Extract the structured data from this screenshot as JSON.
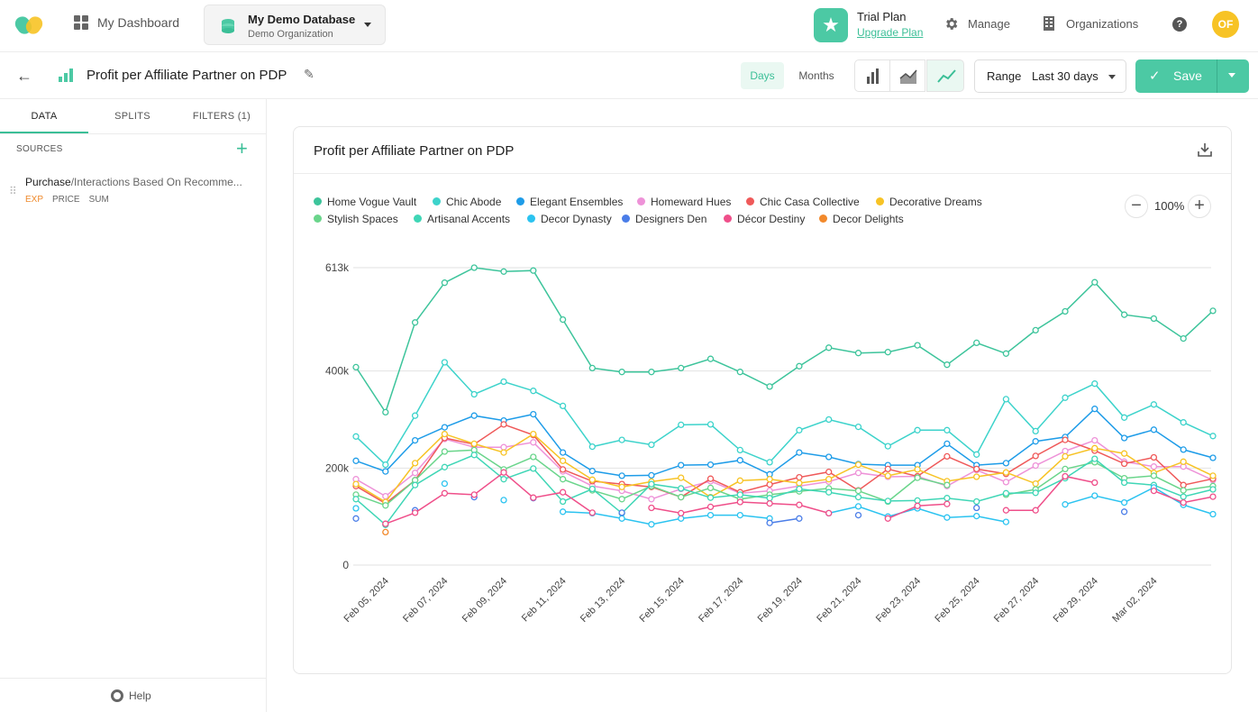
{
  "topbar": {
    "dashboard_label": "My Dashboard",
    "database_name": "My Demo Database",
    "organization_name": "Demo Organization",
    "trial_plan": "Trial Plan",
    "upgrade_link": "Upgrade Plan",
    "manage_label": "Manage",
    "organizations_label": "Organizations",
    "help_glyph": "?",
    "avatar_initials": "OF"
  },
  "subbar": {
    "title": "Profit per Affiliate Partner on PDP",
    "days": "Days",
    "months": "Months",
    "range_label": "Range",
    "range_value": "Last 30 days",
    "save_label": "Save"
  },
  "sidebar": {
    "tabs": [
      "DATA",
      "SPLITS",
      "FILTERS (1)"
    ],
    "sources_label": "SOURCES",
    "source_main": "Purchase",
    "source_sub": "/Interactions Based On Recomme...",
    "tags": [
      "EXP",
      "PRICE",
      "SUM"
    ],
    "help_label": "Help"
  },
  "card": {
    "title": "Profit per Affiliate Partner on PDP",
    "zoom": "100%"
  },
  "colors": {
    "accent": "#4cc9a4"
  },
  "chart_data": {
    "type": "line",
    "title": "Profit per Affiliate Partner on PDP",
    "xlabel": "",
    "ylabel": "",
    "ylim": [
      0,
      613000
    ],
    "y_ticks": [
      "613k",
      "400k",
      "200k",
      "0"
    ],
    "y_tick_values": [
      613000,
      400000,
      200000,
      0
    ],
    "x_tick_labels": [
      "Feb 05, 2024",
      "Feb 07, 2024",
      "Feb 09, 2024",
      "Feb 11, 2024",
      "Feb 13, 2024",
      "Feb 15, 2024",
      "Feb 17, 2024",
      "Feb 19, 2024",
      "Feb 21, 2024",
      "Feb 23, 2024",
      "Feb 25, 2024",
      "Feb 27, 2024",
      "Feb 29, 2024",
      "Mar 02, 2024"
    ],
    "x": [
      "Feb 04, 2024",
      "Feb 05, 2024",
      "Feb 06, 2024",
      "Feb 07, 2024",
      "Feb 08, 2024",
      "Feb 09, 2024",
      "Feb 10, 2024",
      "Feb 11, 2024",
      "Feb 12, 2024",
      "Feb 13, 2024",
      "Feb 14, 2024",
      "Feb 15, 2024",
      "Feb 16, 2024",
      "Feb 17, 2024",
      "Feb 18, 2024",
      "Feb 19, 2024",
      "Feb 20, 2024",
      "Feb 21, 2024",
      "Feb 22, 2024",
      "Feb 23, 2024",
      "Feb 24, 2024",
      "Feb 25, 2024",
      "Feb 26, 2024",
      "Feb 27, 2024",
      "Feb 28, 2024",
      "Feb 29, 2024",
      "Mar 01, 2024",
      "Mar 02, 2024",
      "Mar 03, 2024",
      "Mar 04, 2024"
    ],
    "legend_position": "top-left",
    "grid": true,
    "series": [
      {
        "name": "Home Vogue Vault",
        "color": "#3dc49b",
        "values": [
          408000,
          315000,
          500000,
          582000,
          613000,
          605000,
          607000,
          506000,
          406000,
          398000,
          398000,
          406000,
          425000,
          398000,
          368000,
          410000,
          448000,
          437000,
          439000,
          453000,
          413000,
          458000,
          436000,
          484000,
          523000,
          583000,
          516000,
          508000,
          467000,
          524000
        ]
      },
      {
        "name": "Chic Abode",
        "color": "#3dd3cb",
        "values": [
          265000,
          207000,
          308000,
          418000,
          352000,
          378000,
          359000,
          328000,
          244000,
          258000,
          248000,
          289000,
          290000,
          237000,
          212000,
          278000,
          300000,
          285000,
          245000,
          278000,
          278000,
          228000,
          342000,
          276000,
          345000,
          374000,
          304000,
          331000,
          294000,
          266000
        ]
      },
      {
        "name": "Elegant Ensembles",
        "color": "#1e9ce8",
        "values": [
          215000,
          193000,
          257000,
          284000,
          308000,
          298000,
          311000,
          232000,
          194000,
          184000,
          185000,
          206000,
          207000,
          216000,
          187000,
          232000,
          223000,
          208000,
          206000,
          206000,
          250000,
          206000,
          210000,
          255000,
          264000,
          322000,
          262000,
          279000,
          238000,
          221000
        ]
      },
      {
        "name": "Homeward Hues",
        "color": "#ee92d8",
        "values": [
          177000,
          142000,
          190000,
          260000,
          243000,
          243000,
          253000,
          193000,
          163000,
          153000,
          136000,
          157000,
          173000,
          148000,
          153000,
          163000,
          172000,
          190000,
          182000,
          183000,
          163000,
          196000,
          171000,
          205000,
          235000,
          257000,
          213000,
          203000,
          203000,
          175000
        ]
      },
      {
        "name": "Chic Casa Collective",
        "color": "#ef5959",
        "values": [
          163000,
          127000,
          175000,
          262000,
          249000,
          290000,
          268000,
          197000,
          173000,
          167000,
          161000,
          140000,
          178000,
          150000,
          166000,
          181000,
          192000,
          154000,
          198000,
          183000,
          224000,
          198000,
          188000,
          225000,
          258000,
          236000,
          209000,
          222000,
          165000,
          178000
        ]
      },
      {
        "name": "Decorative Dreams",
        "color": "#f7c325",
        "values": [
          167000,
          130000,
          210000,
          270000,
          250000,
          232000,
          270000,
          215000,
          176000,
          161000,
          172000,
          180000,
          140000,
          174000,
          177000,
          169000,
          177000,
          207000,
          184000,
          197000,
          173000,
          182000,
          191000,
          168000,
          224000,
          241000,
          230000,
          190000,
          213000,
          184000
        ]
      },
      {
        "name": "Stylish Spaces",
        "color": "#6ad58b",
        "values": [
          145000,
          123000,
          175000,
          234000,
          237000,
          197000,
          223000,
          177000,
          154000,
          136000,
          163000,
          140000,
          159000,
          136000,
          145000,
          152000,
          158000,
          153000,
          131000,
          180000,
          165000,
          null,
          145000,
          156000,
          198000,
          212000,
          179000,
          184000,
          154000,
          163000
        ]
      },
      {
        "name": "Artisanal Accents",
        "color": "#3fd6b6",
        "values": [
          136000,
          83000,
          165000,
          202000,
          227000,
          177000,
          199000,
          131000,
          157000,
          107000,
          167000,
          158000,
          139000,
          145000,
          138000,
          157000,
          150000,
          140000,
          132000,
          133000,
          138000,
          131000,
          148000,
          149000,
          179000,
          219000,
          170000,
          165000,
          141000,
          156000
        ]
      },
      {
        "name": "Decor Dynasty",
        "color": "#2bc3f0",
        "values": [
          117000,
          null,
          null,
          168000,
          null,
          134000,
          null,
          110000,
          107000,
          96000,
          84000,
          96000,
          103000,
          103000,
          96000,
          null,
          107000,
          121000,
          100000,
          117000,
          98000,
          101000,
          89000,
          null,
          125000,
          143000,
          129000,
          160000,
          124000,
          105000
        ]
      },
      {
        "name": "Designers Den",
        "color": "#4a7de8",
        "values": [
          96000,
          null,
          113000,
          null,
          140000,
          null,
          138000,
          null,
          null,
          108000,
          null,
          null,
          null,
          null,
          87000,
          96000,
          null,
          103000,
          null,
          null,
          null,
          118000,
          null,
          null,
          null,
          null,
          110000,
          null,
          null,
          null
        ]
      },
      {
        "name": "Décor Destiny",
        "color": "#ef4f8a",
        "values": [
          null,
          85000,
          108000,
          148000,
          145000,
          191000,
          139000,
          150000,
          108000,
          null,
          118000,
          107000,
          120000,
          130000,
          127000,
          124000,
          107000,
          null,
          96000,
          122000,
          126000,
          null,
          113000,
          113000,
          183000,
          170000,
          null,
          153000,
          129000,
          141000
        ]
      },
      {
        "name": "Decor Delights",
        "color": "#f2892b",
        "values": [
          null,
          68000,
          null,
          null,
          null,
          null,
          null,
          null,
          null,
          null,
          null,
          null,
          null,
          null,
          null,
          null,
          null,
          null,
          null,
          null,
          null,
          null,
          null,
          null,
          null,
          null,
          null,
          null,
          null,
          null
        ]
      }
    ]
  }
}
